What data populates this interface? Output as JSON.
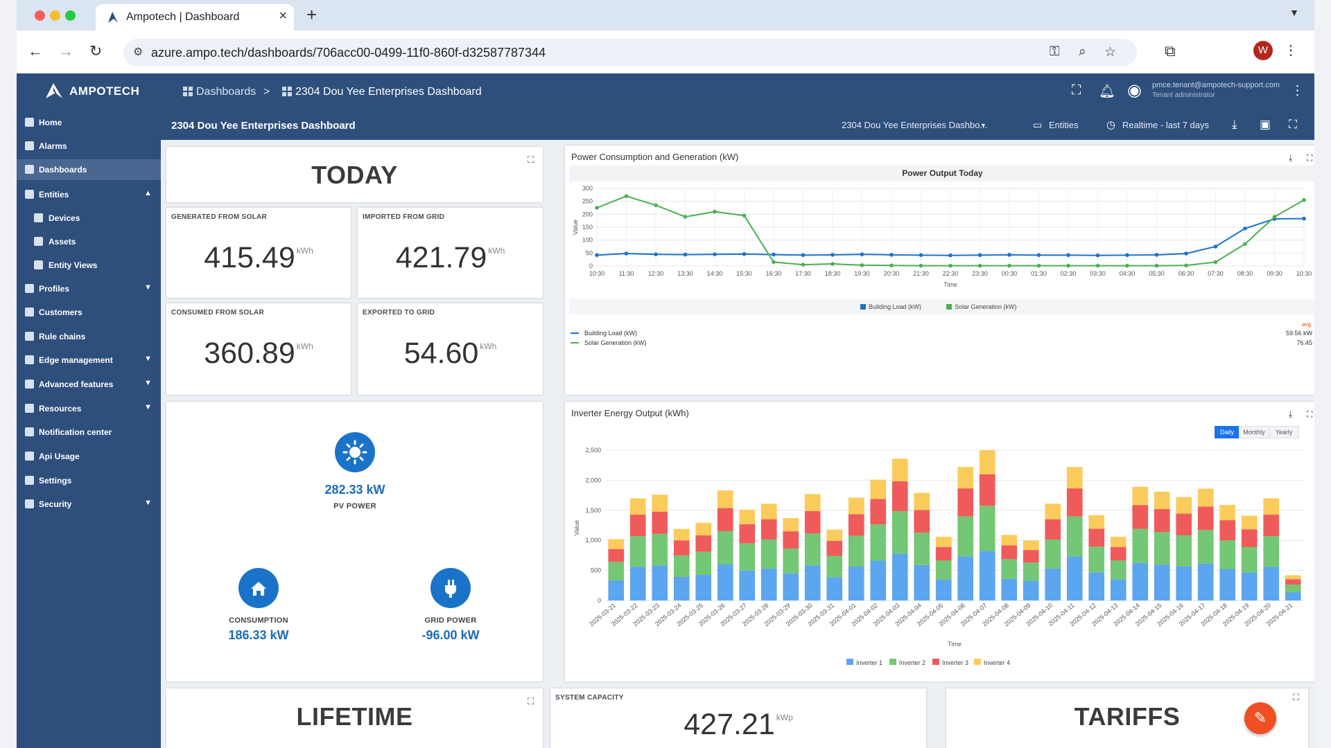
{
  "browser": {
    "tab_title": "Ampotech | Dashboard",
    "url": "azure.ampo.tech/dashboards/706acc00-0499-11f0-860f-d32587787344",
    "profile_initial": "W"
  },
  "header": {
    "logo_text": "AMPOTECH",
    "breadcrumb": [
      "Dashboards",
      ">",
      "2304 Dou Yee Enterprises Dashboard"
    ],
    "user_email": "pmce.tenant@ampotech-support.com",
    "user_role": "Tenant administrator"
  },
  "sidebar": {
    "items": [
      {
        "label": "Home"
      },
      {
        "label": "Alarms"
      },
      {
        "label": "Dashboards"
      },
      {
        "label": "Entities"
      },
      {
        "label": "Devices"
      },
      {
        "label": "Assets"
      },
      {
        "label": "Entity Views"
      },
      {
        "label": "Profiles"
      },
      {
        "label": "Customers"
      },
      {
        "label": "Rule chains"
      },
      {
        "label": "Edge management"
      },
      {
        "label": "Advanced features"
      },
      {
        "label": "Resources"
      },
      {
        "label": "Notification center"
      },
      {
        "label": "Api Usage"
      },
      {
        "label": "Settings"
      },
      {
        "label": "Security"
      }
    ],
    "active": "Dashboards"
  },
  "dashbar": {
    "title": "2304 Dou Yee Enterprises Dashboard",
    "state_select": "2304 Dou Yee Enterprises Dashbo...",
    "entities": "Entities",
    "timewindow": "Realtime - last 7 days"
  },
  "today": {
    "title": "TODAY",
    "generated_label": "GENERATED FROM SOLAR",
    "generated_value": "415.49",
    "imported_label": "IMPORTED FROM GRID",
    "imported_value": "421.79",
    "consumed_label": "CONSUMED FROM SOLAR",
    "consumed_value": "360.89",
    "exported_label": "EXPORTED TO GRID",
    "exported_value": "54.60",
    "unit": "kWh"
  },
  "power_flow": {
    "pv_value": "282.33 kW",
    "pv_label": "PV POWER",
    "consumption_label": "CONSUMPTION",
    "consumption_value": "186.33 kW",
    "grid_label": "GRID POWER",
    "grid_value": "-96.00 kW"
  },
  "bottom": {
    "lifetime": "LIFETIME",
    "capacity_label": "SYSTEM CAPACITY",
    "capacity_value": "427.21",
    "capacity_unit": "kWp",
    "tariffs": "TARIFFS"
  },
  "colors": {
    "brand": "#2e4f7c",
    "building": "#1a73c9",
    "solar": "#4caf50",
    "inv1": "#5ba6ee",
    "inv2": "#74c774",
    "inv3": "#ef5b5b",
    "inv4": "#fbcc5b"
  },
  "chart_data": [
    {
      "type": "line",
      "panel_title": "Power Consumption and Generation (kW)",
      "title": "Power Output Today",
      "xlabel": "Time",
      "ylabel": "Value",
      "ylim": [
        0,
        300
      ],
      "yticks": [
        "300",
        "250",
        "200",
        "150",
        "100",
        "50",
        "0"
      ],
      "x": [
        "10:30",
        "11:30",
        "12:30",
        "13:30",
        "14:30",
        "15:30",
        "16:30",
        "17:30",
        "18:30",
        "19:30",
        "20:30",
        "21:30",
        "22:30",
        "23:30",
        "00:30",
        "01:30",
        "02:30",
        "03:30",
        "04:30",
        "05:30",
        "06:30",
        "07:30",
        "08:30",
        "09:30",
        "10:30"
      ],
      "series": [
        {
          "name": "Building Load (kW)",
          "values": [
            42,
            48,
            45,
            44,
            45,
            46,
            44,
            42,
            43,
            45,
            43,
            42,
            41,
            42,
            43,
            42,
            42,
            41,
            42,
            43,
            48,
            75,
            145,
            182,
            183
          ]
        },
        {
          "name": "Solar Generation (kW)",
          "values": [
            225,
            270,
            235,
            190,
            210,
            195,
            15,
            5,
            8,
            3,
            2,
            1,
            1,
            1,
            1,
            1,
            1,
            1,
            1,
            1,
            2,
            15,
            85,
            190,
            255
          ]
        }
      ],
      "legend_placement": "bottom",
      "table_header": "avg",
      "table_values": [
        "59.56 kW",
        "76.45"
      ]
    },
    {
      "type": "bar",
      "panel_title": "Inverter Energy Output (kWh)",
      "xlabel": "Time",
      "ylabel": "Value",
      "ylim": [
        0,
        2500
      ],
      "yticks": [
        "2,500",
        "2,000",
        "1,500",
        "1,000",
        "500",
        "0"
      ],
      "periods": [
        "Daily",
        "Monthly",
        "Yearly"
      ],
      "selected_period": "Daily",
      "x_labels": [
        "2025-03-21",
        "2025-03-22",
        "2025-03-23",
        "2025-03-24",
        "2025-03-25",
        "2025-03-26",
        "2025-03-27",
        "2025-03-28",
        "2025-03-29",
        "2025-03-30",
        "2025-03-31",
        "2025-04-01",
        "2025-04-02",
        "2025-04-03",
        "2025-04-04",
        "2025-04-05",
        "2025-04-06",
        "2025-04-07",
        "2025-04-08",
        "2025-04-09",
        "2025-04-10",
        "2025-04-11",
        "2025-04-12",
        "2025-04-13",
        "2025-04-14",
        "2025-04-15",
        "2025-04-16",
        "2025-04-17",
        "2025-04-18",
        "2025-04-19",
        "2025-04-20",
        "2025-04-21"
      ],
      "bar_totals": [
        1020,
        1700,
        1760,
        1190,
        1290,
        1830,
        1510,
        1610,
        1370,
        1770,
        1180,
        1710,
        2010,
        2360,
        1790,
        1060,
        2220,
        2500,
        1090,
        1000,
        1610,
        2220,
        1420,
        1060,
        1890,
        1810,
        1720,
        1860,
        1590,
        1410,
        1700,
        420
      ],
      "series": [
        {
          "name": "Inverter 1",
          "fraction": 0.33
        },
        {
          "name": "Inverter 2",
          "fraction": 0.3
        },
        {
          "name": "Inverter 3",
          "fraction": 0.21
        },
        {
          "name": "Inverter 4",
          "fraction": 0.16
        }
      ],
      "legend_placement": "bottom"
    }
  ]
}
